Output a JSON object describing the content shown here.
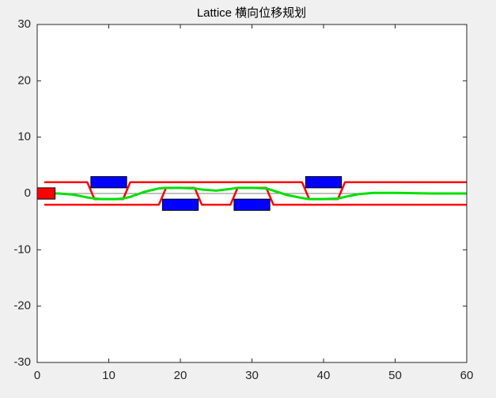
{
  "chart_data": {
    "type": "line",
    "title": "Lattice 横向位移规划",
    "xlim": [
      0,
      60
    ],
    "ylim": [
      -30,
      30
    ],
    "xticks": [
      0,
      10,
      20,
      30,
      40,
      50,
      60
    ],
    "yticks": [
      -30,
      -20,
      -10,
      0,
      10,
      20,
      30
    ],
    "series": [
      {
        "color": "#808080",
        "width": 1,
        "x": [
          1,
          60
        ],
        "values": [
          0,
          0
        ]
      },
      {
        "color": "#ff0000",
        "width": 2.5,
        "x": [
          1,
          7,
          8,
          12,
          13,
          37,
          38,
          42,
          43,
          60
        ],
        "values": [
          2,
          2,
          -1,
          -1,
          2,
          2,
          -1,
          -1,
          2,
          2
        ]
      },
      {
        "color": "#ff0000",
        "width": 2.5,
        "x": [
          1,
          17,
          18,
          22,
          23,
          27,
          28,
          32,
          33,
          60
        ],
        "values": [
          -2,
          -2,
          1,
          1,
          -2,
          -2,
          1,
          1,
          -2,
          -2
        ]
      },
      {
        "color": "#00e000",
        "width": 3,
        "x": [
          1,
          3,
          5,
          7,
          8,
          9,
          10,
          11,
          12,
          13,
          15,
          17,
          18,
          20,
          22,
          23,
          25,
          27,
          28,
          30,
          32,
          33,
          35,
          37,
          38,
          40,
          42,
          43,
          45,
          47,
          50,
          55,
          60
        ],
        "values": [
          0,
          0,
          -0.2,
          -0.7,
          -0.9,
          -1,
          -1,
          -1,
          -0.9,
          -0.6,
          0.3,
          0.9,
          1,
          1,
          0.9,
          0.7,
          0.5,
          0.8,
          1,
          1,
          0.9,
          0.5,
          -0.3,
          -0.8,
          -1,
          -1,
          -0.9,
          -0.6,
          -0.1,
          0.1,
          0.1,
          0,
          0
        ]
      }
    ],
    "rectangles": [
      {
        "color": "#ff0000",
        "x": 0,
        "y": -1,
        "width": 2.5,
        "height": 2
      },
      {
        "color": "#0000ff",
        "x": 7.5,
        "y": 1,
        "width": 5,
        "height": 2
      },
      {
        "color": "#0000ff",
        "x": 17.5,
        "y": -3,
        "width": 5,
        "height": 2
      },
      {
        "color": "#0000ff",
        "x": 27.5,
        "y": -3,
        "width": 5,
        "height": 2
      },
      {
        "color": "#0000ff",
        "x": 37.5,
        "y": 1,
        "width": 5,
        "height": 2
      }
    ]
  }
}
